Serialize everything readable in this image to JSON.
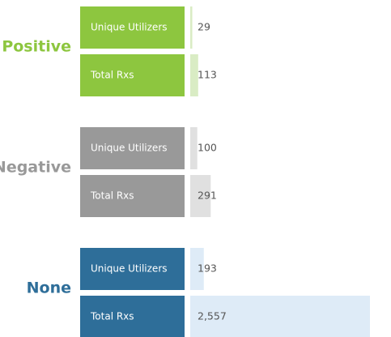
{
  "chart_data": {
    "type": "bar",
    "groups": [
      {
        "name": "Positive",
        "color": "#8dc63f",
        "bar_color": "#d9ecc4",
        "categories": [
          "Unique Utilizers",
          "Total Rxs"
        ],
        "values": [
          29,
          113
        ]
      },
      {
        "name": "Negative",
        "color": "#999999",
        "bar_color": "#e0e0e0",
        "categories": [
          "Unique Utilizers",
          "Total Rxs"
        ],
        "values": [
          100,
          291
        ]
      },
      {
        "name": "None",
        "color": "#2e6e99",
        "bar_color": "#deebf7",
        "categories": [
          "Unique Utilizers",
          "Total Rxs"
        ],
        "values": [
          193,
          2557
        ],
        "value_labels": [
          "193",
          "2,557"
        ]
      }
    ]
  }
}
